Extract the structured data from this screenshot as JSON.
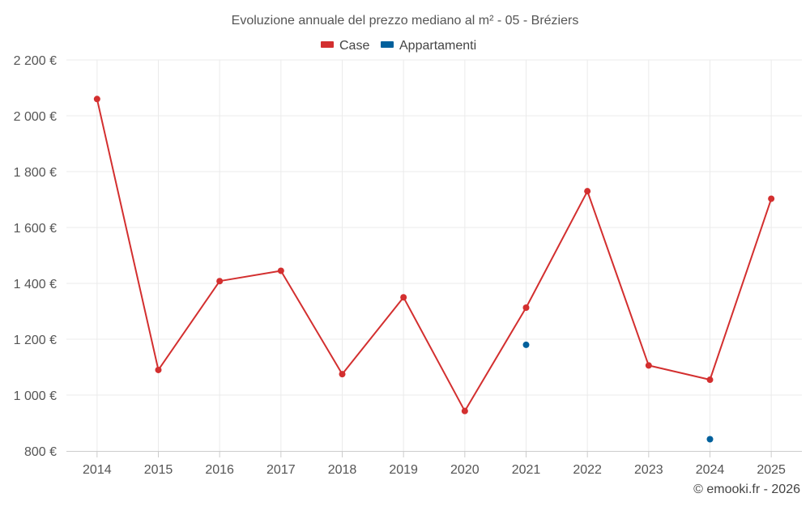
{
  "chart_data": {
    "type": "line",
    "title": "Evoluzione annuale del prezzo mediano al m² - 05 - Bréziers",
    "credit": "© emooki.fr - 2026",
    "xlabel": "",
    "ylabel": "",
    "categories": [
      "2014",
      "2015",
      "2016",
      "2017",
      "2018",
      "2019",
      "2020",
      "2021",
      "2022",
      "2023",
      "2024",
      "2025"
    ],
    "ylim": [
      800,
      2200
    ],
    "yticks": [
      800,
      1000,
      1200,
      1400,
      1600,
      1800,
      2000,
      2200
    ],
    "ytick_labels": [
      "800 €",
      "1 000 €",
      "1 200 €",
      "1 400 €",
      "1 600 €",
      "1 800 €",
      "2 000 €",
      "2 200 €"
    ],
    "grid": true,
    "legend_position": "top-center",
    "series": [
      {
        "name": "Case",
        "color": "#d32f2f",
        "values": [
          2060,
          1090,
          1408,
          1445,
          1075,
          1350,
          943,
          1313,
          1730,
          1106,
          1055,
          1703
        ]
      },
      {
        "name": "Appartamenti",
        "color": "#00609c",
        "values": [
          null,
          null,
          null,
          null,
          null,
          null,
          null,
          1180,
          null,
          null,
          842,
          null
        ]
      }
    ]
  }
}
